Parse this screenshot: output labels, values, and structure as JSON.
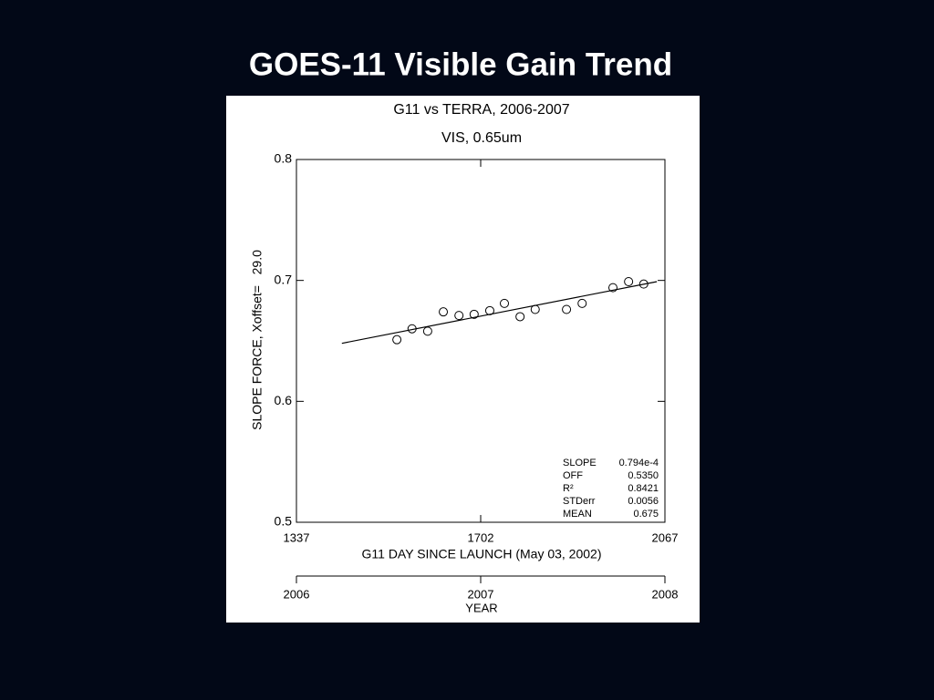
{
  "slide": {
    "title": "GOES-11 Visible Gain Trend"
  },
  "chart_data": {
    "type": "scatter",
    "title": "G11 vs TERRA, 2006-2007",
    "subtitle": "VIS, 0.65um",
    "xlabel": "G11 DAY SINCE LAUNCH (May 03, 2002)",
    "ylabel": "SLOPE FORCE, Xoffset=   29.0",
    "x": [
      1536,
      1566,
      1597,
      1628,
      1659,
      1689,
      1720,
      1749,
      1780,
      1810,
      1872,
      1903,
      1964,
      1995,
      2025
    ],
    "y": [
      0.651,
      0.66,
      0.658,
      0.674,
      0.671,
      0.672,
      0.675,
      0.681,
      0.67,
      0.676,
      0.676,
      0.681,
      0.694,
      0.699,
      0.697
    ],
    "marker_color": "#000000",
    "fit_line": {
      "x": [
        1427,
        2051
      ],
      "y": [
        0.648,
        0.699
      ]
    },
    "xlim": [
      1337,
      2067
    ],
    "xticks": [
      1337,
      1702,
      2067
    ],
    "ylim": [
      0.5,
      0.8
    ],
    "yticks": [
      0.5,
      0.6,
      0.7,
      0.8
    ],
    "x2label": "YEAR",
    "x2lim": [
      2006,
      2008
    ],
    "x2ticks": [
      2006,
      2007,
      2008
    ],
    "stats": [
      {
        "label": "SLOPE",
        "value": "0.794e-4"
      },
      {
        "label": "OFF",
        "value": "0.5350"
      },
      {
        "label": "R²",
        "value": "0.8421"
      },
      {
        "label": "STDerr",
        "value": "0.0056"
      },
      {
        "label": "MEAN",
        "value": "0.675"
      }
    ]
  }
}
